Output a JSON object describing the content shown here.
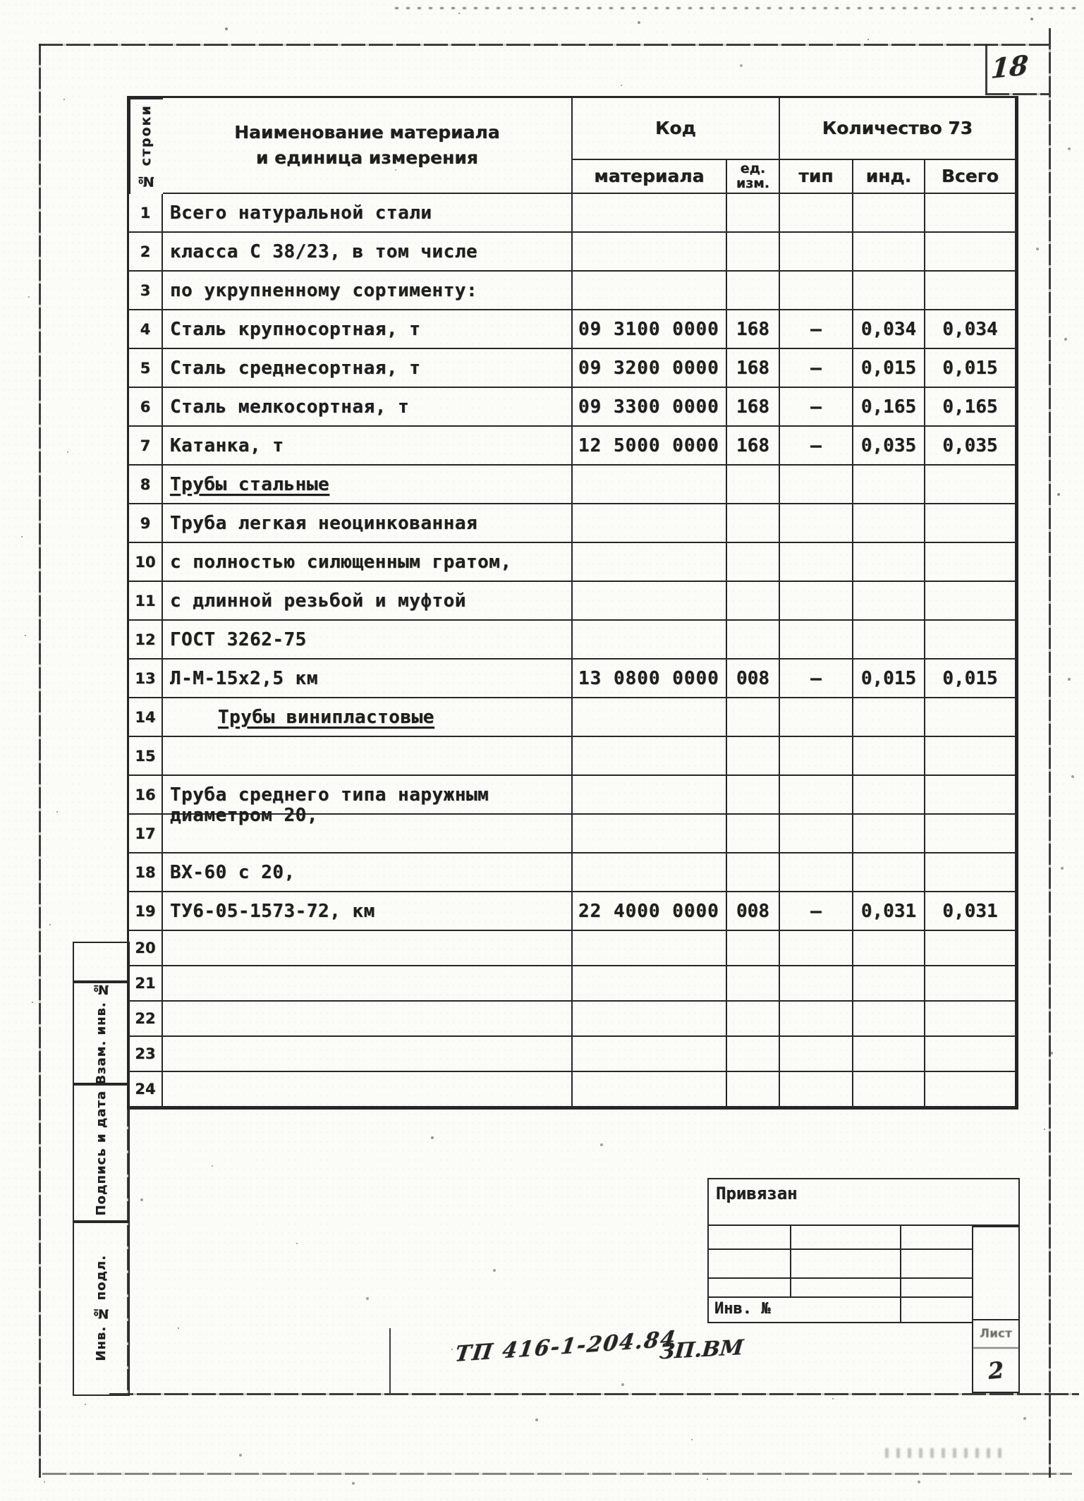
{
  "page": {
    "number": "18"
  },
  "table": {
    "corner": "№ строки",
    "name_header_line1": "Наименование материала",
    "name_header_line2": "и единица измерения",
    "code_group": "Код",
    "qty_group": "Количество 73",
    "sub": {
      "material": "материала",
      "unit_line1": "ед.",
      "unit_line2": "изм.",
      "type": "тип",
      "ind": "инд.",
      "total": "Всего"
    },
    "rows": [
      {
        "n": "1",
        "name": "Всего натуральной стали",
        "code": "",
        "unit": "",
        "type": "",
        "ind": "",
        "total": ""
      },
      {
        "n": "2",
        "name": "класса С 38/23, в том числе",
        "code": "",
        "unit": "",
        "type": "",
        "ind": "",
        "total": ""
      },
      {
        "n": "3",
        "name": "по укрупненному сортименту:",
        "code": "",
        "unit": "",
        "type": "",
        "ind": "",
        "total": ""
      },
      {
        "n": "4",
        "name": "Сталь крупносортная, т",
        "code": "09 3100 0000",
        "unit": "168",
        "type": "–",
        "ind": "0,034",
        "total": "0,034"
      },
      {
        "n": "5",
        "name": "Сталь среднесортная, т",
        "code": "09 3200 0000",
        "unit": "168",
        "type": "–",
        "ind": "0,015",
        "total": "0,015"
      },
      {
        "n": "6",
        "name": "Сталь мелкосортная, т",
        "code": "09 3300 0000",
        "unit": "168",
        "type": "–",
        "ind": "0,165",
        "total": "0,165"
      },
      {
        "n": "7",
        "name": "Катанка, т",
        "code": "12 5000 0000",
        "unit": "168",
        "type": "–",
        "ind": "0,035",
        "total": "0,035"
      },
      {
        "n": "8",
        "name": "Трубы стальные",
        "u": true,
        "code": "",
        "unit": "",
        "type": "",
        "ind": "",
        "total": ""
      },
      {
        "n": "9",
        "name": "Труба легкая неоцинкованная",
        "code": "",
        "unit": "",
        "type": "",
        "ind": "",
        "total": ""
      },
      {
        "n": "10",
        "name": "с полностью силющенным гратом,",
        "code": "",
        "unit": "",
        "type": "",
        "ind": "",
        "total": ""
      },
      {
        "n": "11",
        "name": "с длинной резьбой и муфтой",
        "code": "",
        "unit": "",
        "type": "",
        "ind": "",
        "total": ""
      },
      {
        "n": "12",
        "name": "ГОСТ 3262-75",
        "code": "",
        "unit": "",
        "type": "",
        "ind": "",
        "total": ""
      },
      {
        "n": "13",
        "name": "Л-М-15х2,5 км",
        "code": "13 0800 0000",
        "unit": "008",
        "type": "–",
        "ind": "0,015",
        "total": "0,015"
      },
      {
        "n": "14",
        "name": "Трубы винипластовые",
        "u": true,
        "indent": true,
        "code": "",
        "unit": "",
        "type": "",
        "ind": "",
        "total": ""
      },
      {
        "n": "15",
        "name": "",
        "code": "",
        "unit": "",
        "type": "",
        "ind": "",
        "total": ""
      },
      {
        "n": "16",
        "name": "Труба среднего типа наружным",
        "code": "",
        "unit": "",
        "type": "",
        "ind": "",
        "total": ""
      },
      {
        "n": "17",
        "name": "диаметром 20,",
        "top": true,
        "code": "",
        "unit": "",
        "type": "",
        "ind": "",
        "total": ""
      },
      {
        "n": "18",
        "name": "ВХ-60 с 20,",
        "code": "",
        "unit": "",
        "type": "",
        "ind": "",
        "total": ""
      },
      {
        "n": "19",
        "name": "ТУ6-05-1573-72, км",
        "code": "22 4000 0000",
        "unit": "008",
        "type": "–",
        "ind": "0,031",
        "total": "0,031"
      },
      {
        "n": "20",
        "name": "",
        "code": "",
        "unit": "",
        "type": "",
        "ind": "",
        "total": ""
      },
      {
        "n": "21",
        "name": "",
        "code": "",
        "unit": "",
        "type": "",
        "ind": "",
        "total": ""
      },
      {
        "n": "22",
        "name": "",
        "code": "",
        "unit": "",
        "type": "",
        "ind": "",
        "total": ""
      },
      {
        "n": "23",
        "name": "",
        "code": "",
        "unit": "",
        "type": "",
        "ind": "",
        "total": ""
      },
      {
        "n": "24",
        "name": "",
        "code": "",
        "unit": "",
        "type": "",
        "ind": "",
        "total": ""
      }
    ]
  },
  "sidebar": {
    "boxes": [
      {
        "label": ""
      },
      {
        "label": "Взам. инв. №"
      },
      {
        "label": "Подпись и дата"
      },
      {
        "label": "Инв. № подл."
      }
    ]
  },
  "stamp": {
    "top_label": "Привязан",
    "inv_label": "Инв. №",
    "sheet_label": "Лист",
    "sheet_number": "2"
  },
  "annotations": {
    "doc_number": "ТП 416-1-204.84",
    "mark": "ЗП.ВМ"
  }
}
